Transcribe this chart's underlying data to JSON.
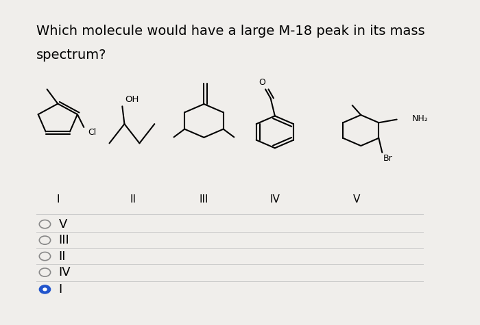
{
  "title_line1": "Which molecule would have a large M-18 peak in its mass",
  "title_line2": "spectrum?",
  "title_fontsize": 14,
  "bg_color": "#f0eeeb",
  "options": [
    "V",
    "III",
    "II",
    "IV",
    "I"
  ],
  "selected_option": "I",
  "option_fontsize": 13,
  "separator_color": "#cccccc",
  "line_color": "black",
  "radio_selected_color": "#2255cc"
}
